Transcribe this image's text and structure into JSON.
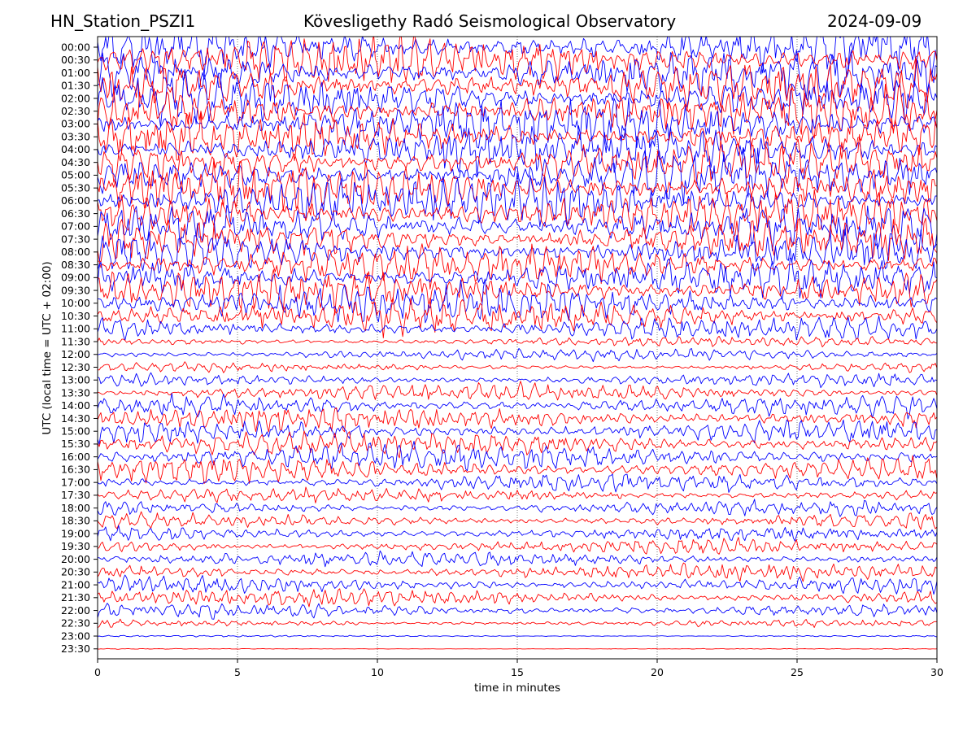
{
  "header": {
    "station": "HN_Station_PSZI1",
    "observatory": "Kövesligethy Radó Seismological Observatory",
    "date": "2024-09-09"
  },
  "chart_data": {
    "type": "line",
    "title": "Kövesligethy Radó Seismological Observatory",
    "xlabel": "time in minutes",
    "ylabel": "UTC (local time = UTC + 02:00)",
    "xlim": [
      0,
      30
    ],
    "x_ticks": [
      "0",
      "5",
      "10",
      "15",
      "20",
      "25",
      "30"
    ],
    "grid": "vertical dotted lines at x = 5, 10, 15, 20, 25",
    "row_labels": [
      "00:00",
      "00:30",
      "01:00",
      "01:30",
      "02:00",
      "02:30",
      "03:00",
      "03:30",
      "04:00",
      "04:30",
      "05:00",
      "05:30",
      "06:00",
      "06:30",
      "07:00",
      "07:30",
      "08:00",
      "08:30",
      "09:00",
      "09:30",
      "10:00",
      "10:30",
      "11:00",
      "11:30",
      "12:00",
      "12:30",
      "13:00",
      "13:30",
      "14:00",
      "14:30",
      "15:00",
      "15:30",
      "16:00",
      "16:30",
      "17:00",
      "17:30",
      "18:00",
      "18:30",
      "19:00",
      "19:30",
      "20:00",
      "20:30",
      "21:00",
      "21:30",
      "22:00",
      "22:30",
      "23:00",
      "23:30"
    ],
    "trace_colors": [
      "#0000ff",
      "#ff0000"
    ],
    "relative_amplitude": [
      3.2,
      3.2,
      3.2,
      3.2,
      3.2,
      3.2,
      3.2,
      3.2,
      3.2,
      3.2,
      3.2,
      3.2,
      3.2,
      3.2,
      3.0,
      3.0,
      2.8,
      2.6,
      2.6,
      2.6,
      2.6,
      2.4,
      1.6,
      0.7,
      0.8,
      0.6,
      0.9,
      1.2,
      1.5,
      1.6,
      1.6,
      1.7,
      1.8,
      1.6,
      1.2,
      1.0,
      1.0,
      1.0,
      1.0,
      1.0,
      1.0,
      1.1,
      1.2,
      1.2,
      1.0,
      0.5,
      0.12,
      0.05
    ],
    "notes": "Helicorder: each row is a 30-minute seismogram segment; traces alternate blue/red. Amplitudes are qualitative estimates of the plotted wiggle size."
  }
}
